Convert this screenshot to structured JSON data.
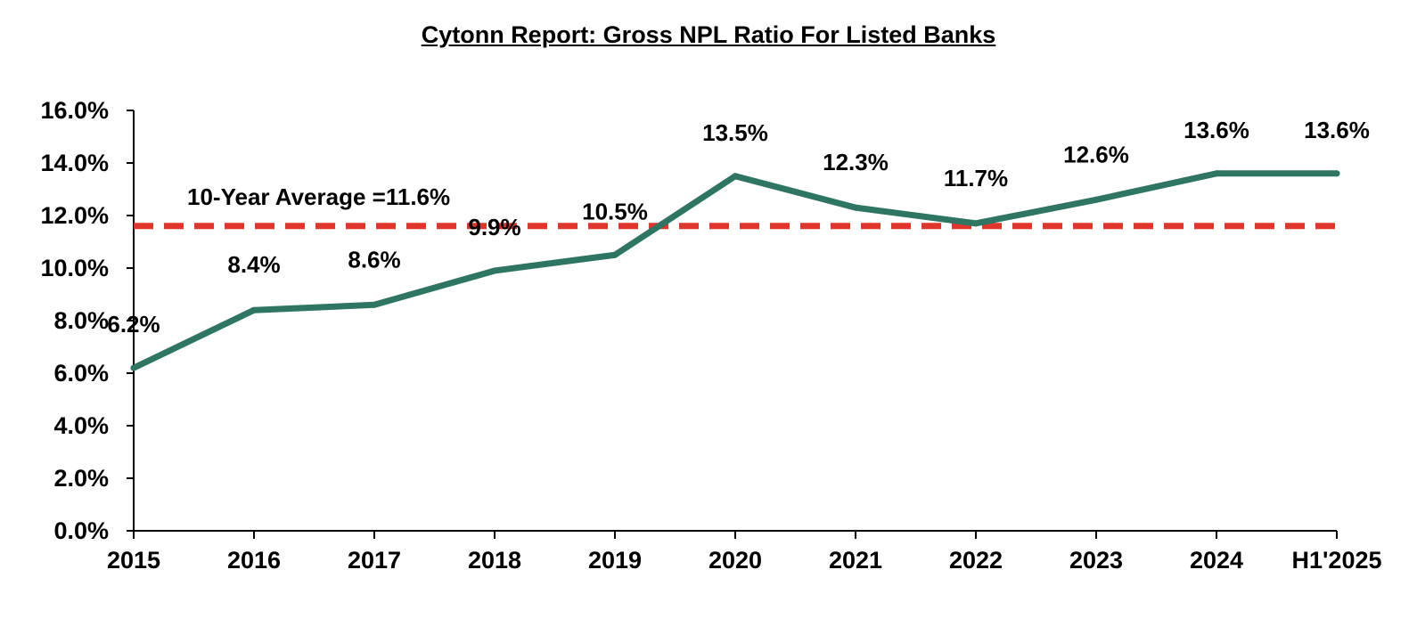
{
  "chart_data": {
    "type": "line",
    "title": "Cytonn Report: Gross NPL Ratio For Listed Banks",
    "categories": [
      "2015",
      "2016",
      "2017",
      "2018",
      "2019",
      "2020",
      "2021",
      "2022",
      "2023",
      "2024",
      "H1'2025"
    ],
    "series": [
      {
        "values": [
          6.2,
          8.4,
          8.6,
          9.9,
          10.5,
          13.5,
          12.3,
          11.7,
          12.6,
          13.6,
          13.6
        ],
        "color": "#2e7562"
      }
    ],
    "data_labels": [
      "6.2%",
      "8.4%",
      "8.6%",
      "9.9%",
      "10.5%",
      "13.5%",
      "12.3%",
      "11.7%",
      "12.6%",
      "13.6%",
      "13.6%"
    ],
    "reference_line": {
      "value": 11.6,
      "label": "10-Year Average =11.6%",
      "color": "#e0352b",
      "style": "dashed"
    },
    "ylim": [
      0,
      16
    ],
    "yticks": [
      "0.0%",
      "2.0%",
      "4.0%",
      "6.0%",
      "8.0%",
      "10.0%",
      "12.0%",
      "14.0%",
      "16.0%"
    ],
    "ytick_values": [
      0,
      2,
      4,
      6,
      8,
      10,
      12,
      14,
      16
    ],
    "xlabel": "",
    "ylabel": "",
    "grid": false,
    "legend": "none"
  }
}
